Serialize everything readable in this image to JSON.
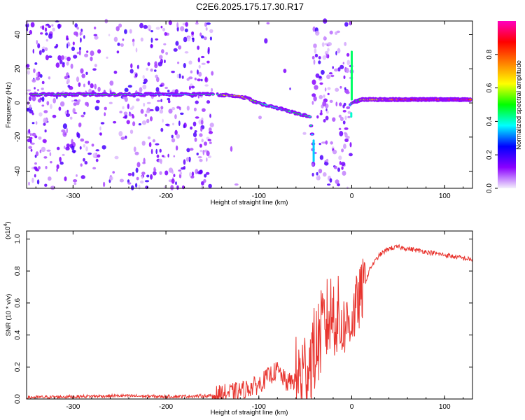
{
  "title": "C2E6.2025.175.17.30.R17",
  "colors": {
    "line": "#e8342e",
    "frame": "#000000",
    "trace": "#a87de8"
  },
  "chart_data": [
    {
      "type": "heatmap",
      "xlabel": "Height of straight line (km)",
      "ylabel": "Frequency (Hz)",
      "xlim": [
        -350,
        130
      ],
      "ylim": [
        -50,
        48
      ],
      "xticks": [
        -300,
        -200,
        -100,
        0,
        100
      ],
      "xtick_labels": [
        "-300",
        "-200",
        "-100",
        "0",
        "100"
      ],
      "yticks": [
        -40,
        -20,
        0,
        20,
        40
      ],
      "ytick_labels": [
        "-40",
        "-20",
        "0",
        "20",
        "40"
      ],
      "colorbar": {
        "label": "Normalized spectral amplitude",
        "range": [
          0,
          1
        ],
        "ticks": [
          0.0,
          0.2,
          0.4,
          0.6,
          0.8
        ],
        "tick_labels": [
          "0.0",
          "0.2",
          "0.4",
          "0.6",
          "0.8"
        ],
        "colormap": [
          "#f4f0fc",
          "#8a00ff",
          "#0000ff",
          "#00ffff",
          "#00ff00",
          "#ffff00",
          "#ff7f00",
          "#ff0000",
          "#ff00c0"
        ]
      },
      "ridge": {
        "x": [
          -300,
          -250,
          -200,
          -150,
          -120,
          -100,
          -80,
          -60,
          -45,
          -40,
          0,
          10,
          50,
          80,
          100,
          130
        ],
        "y": [
          5,
          5,
          5,
          5,
          4,
          0,
          -3,
          -6,
          -8,
          -30,
          0,
          2,
          2,
          2,
          2,
          2
        ],
        "amplitude": [
          0.45,
          0.45,
          0.35,
          0.45,
          0.7,
          0.45,
          0.4,
          0.45,
          0.45,
          0.4,
          0.4,
          0.6,
          0.75,
          0.9,
          0.9,
          0.85
        ]
      }
    },
    {
      "type": "line",
      "xlabel": "Height of straight line (km)",
      "ylabel": "SNR (10 * v/v)",
      "yscale_label": "(x10",
      "yscale_exp": "4",
      "yscale_close": ")",
      "xlim": [
        -350,
        130
      ],
      "ylim": [
        0,
        1.05
      ],
      "xticks": [
        -300,
        -200,
        -100,
        0,
        100
      ],
      "xtick_labels": [
        "-300",
        "-200",
        "-100",
        "0",
        "100"
      ],
      "yticks": [
        0.0,
        0.2,
        0.4,
        0.6,
        0.8,
        1.0
      ],
      "ytick_labels": [
        "0.0",
        "0.2",
        "0.4",
        "0.6",
        "0.8",
        "1.0"
      ],
      "series": [
        {
          "x": [
            -350,
            -300,
            -250,
            -200,
            -150,
            -120,
            -100,
            -90,
            -80,
            -70,
            -60,
            -50,
            -40,
            -30,
            -20,
            -10,
            0,
            10,
            20,
            30,
            40,
            50,
            60,
            70,
            80,
            90,
            100,
            110,
            120,
            130
          ],
          "y": [
            0.01,
            0.015,
            0.02,
            0.015,
            0.02,
            0.05,
            0.09,
            0.14,
            0.18,
            0.1,
            0.12,
            0.18,
            0.3,
            0.45,
            0.55,
            0.45,
            0.5,
            0.65,
            0.82,
            0.9,
            0.94,
            0.95,
            0.94,
            0.93,
            0.92,
            0.91,
            0.9,
            0.89,
            0.88,
            0.87
          ]
        }
      ]
    }
  ]
}
